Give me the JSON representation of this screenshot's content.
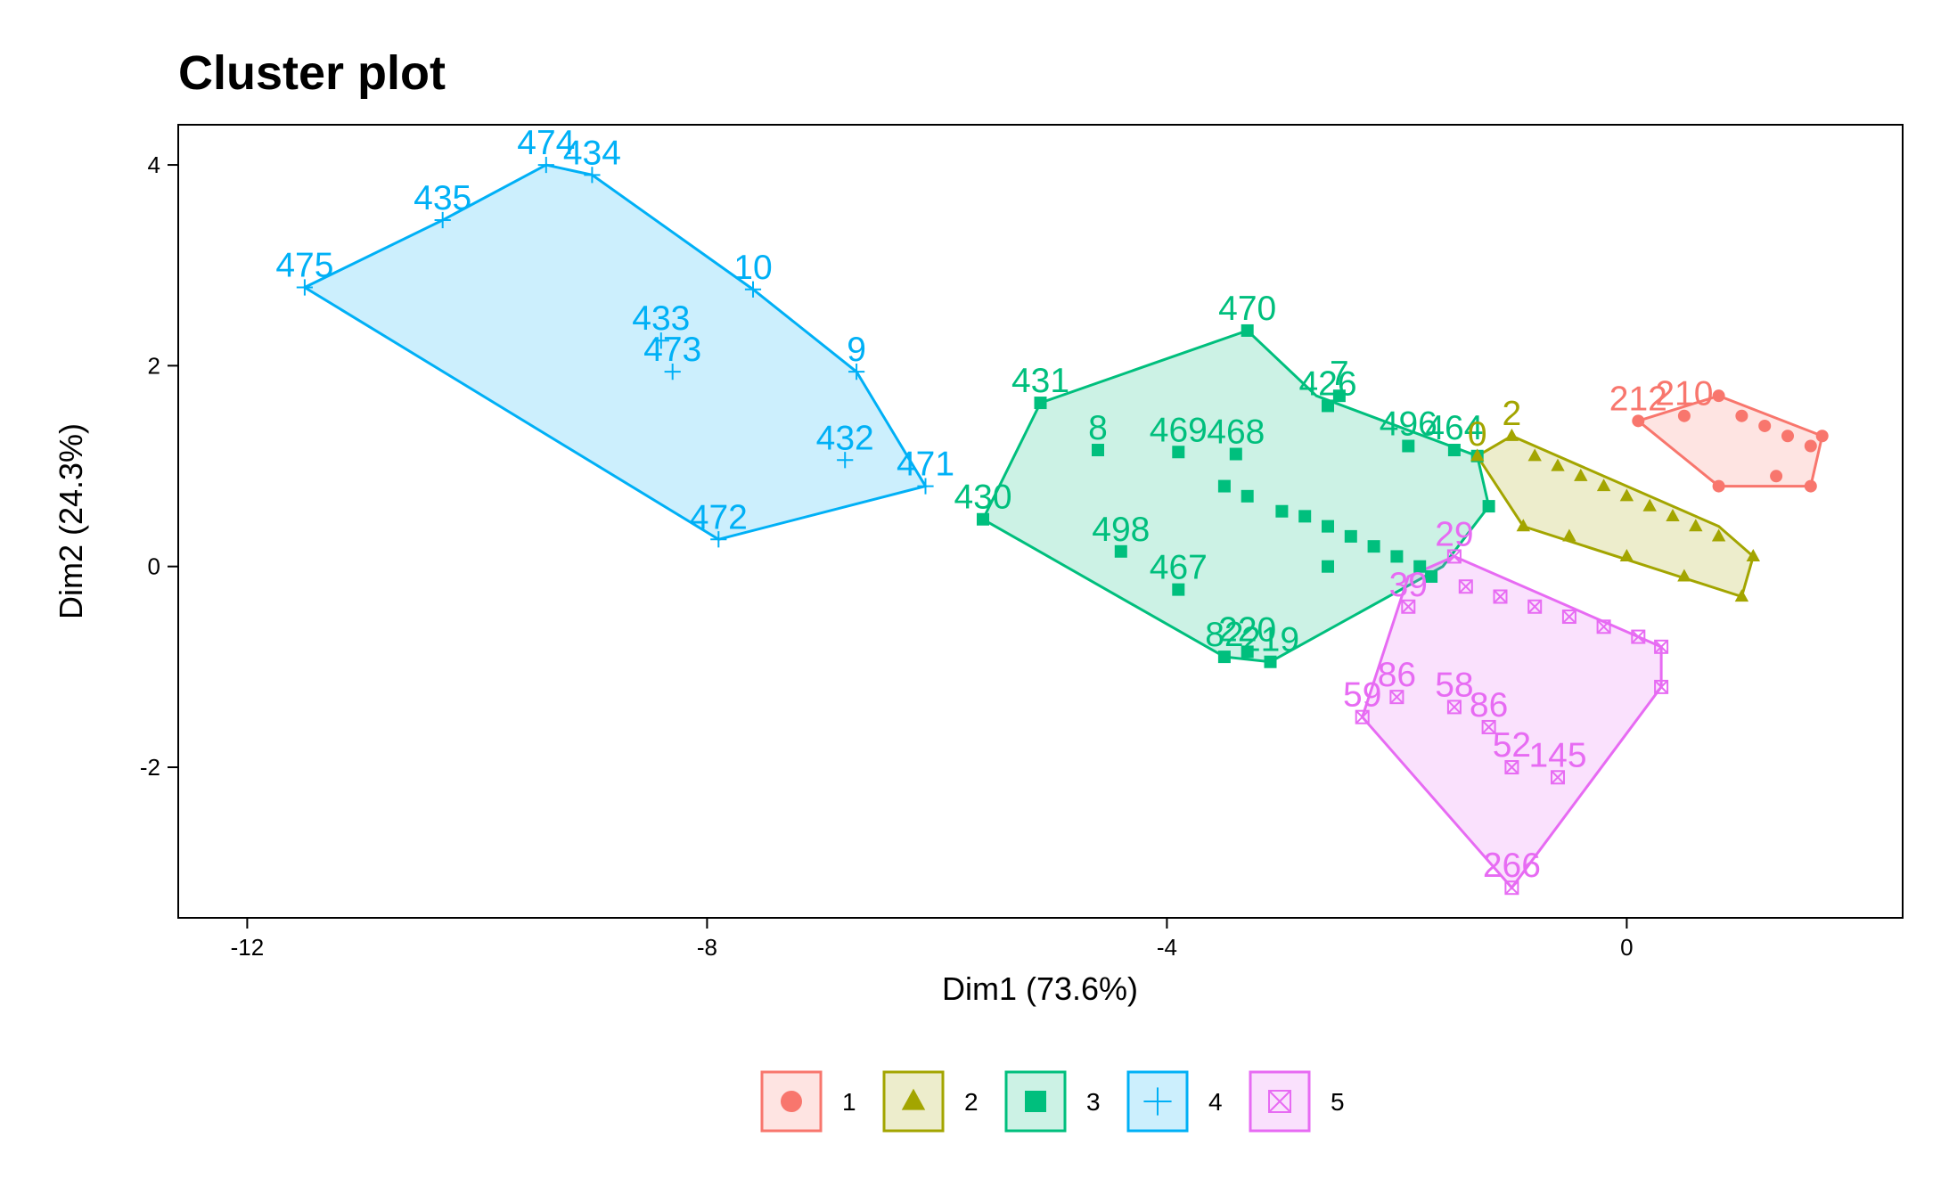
{
  "chart_data": {
    "type": "scatter",
    "title": "Cluster plot",
    "xlabel": "Dim1 (73.6%)",
    "ylabel": "Dim2 (24.3%)",
    "xlim": [
      -12.6,
      2.4
    ],
    "ylim": [
      -3.5,
      4.4
    ],
    "x_ticks": [
      -12,
      -8,
      -4,
      0
    ],
    "y_ticks": [
      -2,
      0,
      2,
      4
    ],
    "grid": false,
    "legend_position": "bottom",
    "legend": [
      "1",
      "2",
      "3",
      "4",
      "5"
    ],
    "colors": {
      "1": "#F8766D",
      "2": "#A3A500",
      "3": "#00BF7D",
      "4": "#00B0F6",
      "5": "#E76BF3"
    },
    "clusters": [
      {
        "name": "4",
        "marker": "plus",
        "hull": [
          [
            -11.5,
            2.78
          ],
          [
            -10.3,
            3.45
          ],
          [
            -9.4,
            4.0
          ],
          [
            -9.0,
            3.9
          ],
          [
            -7.6,
            2.76
          ],
          [
            -6.7,
            1.94
          ],
          [
            -6.1,
            0.8
          ],
          [
            -7.9,
            0.27
          ]
        ],
        "points": [
          {
            "x": -11.5,
            "y": 2.78,
            "label": "475"
          },
          {
            "x": -10.3,
            "y": 3.45,
            "label": "435"
          },
          {
            "x": -9.4,
            "y": 4.0,
            "label": "474"
          },
          {
            "x": -9.0,
            "y": 3.9,
            "label": "434"
          },
          {
            "x": -7.6,
            "y": 2.76,
            "label": "10"
          },
          {
            "x": -8.4,
            "y": 2.25,
            "label": "433"
          },
          {
            "x": -8.3,
            "y": 1.94,
            "label": "473"
          },
          {
            "x": -6.7,
            "y": 1.94,
            "label": "9"
          },
          {
            "x": -6.8,
            "y": 1.06,
            "label": "432"
          },
          {
            "x": -6.1,
            "y": 0.8,
            "label": "471"
          },
          {
            "x": -7.9,
            "y": 0.27,
            "label": "472"
          }
        ]
      },
      {
        "name": "3",
        "marker": "square",
        "hull": [
          [
            -5.6,
            0.47
          ],
          [
            -5.1,
            1.63
          ],
          [
            -3.3,
            2.35
          ],
          [
            -2.7,
            1.7
          ],
          [
            -1.3,
            1.1
          ],
          [
            -1.2,
            0.6
          ],
          [
            -1.6,
            0.0
          ],
          [
            -3.1,
            -0.95
          ],
          [
            -3.5,
            -0.9
          ]
        ],
        "points": [
          {
            "x": -5.6,
            "y": 0.47,
            "label": "430"
          },
          {
            "x": -5.1,
            "y": 1.63,
            "label": "431"
          },
          {
            "x": -4.6,
            "y": 1.16,
            "label": "8"
          },
          {
            "x": -3.3,
            "y": 2.35,
            "label": "470"
          },
          {
            "x": -3.9,
            "y": 1.14,
            "label": "469"
          },
          {
            "x": -3.4,
            "y": 1.12,
            "label": "468"
          },
          {
            "x": -4.4,
            "y": 0.15,
            "label": "498"
          },
          {
            "x": -3.9,
            "y": -0.23,
            "label": "467"
          },
          {
            "x": -3.5,
            "y": -0.9,
            "label": "82"
          },
          {
            "x": -3.1,
            "y": -0.95,
            "label": "219"
          },
          {
            "x": -3.3,
            "y": -0.85,
            "label": "220"
          },
          {
            "x": -2.6,
            "y": 1.6,
            "label": "426"
          },
          {
            "x": -2.5,
            "y": 1.7,
            "label": "7"
          },
          {
            "x": -1.9,
            "y": 1.2,
            "label": "496"
          },
          {
            "x": -1.5,
            "y": 1.16,
            "label": "464"
          },
          {
            "x": -3.5,
            "y": 0.8
          },
          {
            "x": -3.3,
            "y": 0.7
          },
          {
            "x": -3.0,
            "y": 0.55
          },
          {
            "x": -2.8,
            "y": 0.5
          },
          {
            "x": -2.6,
            "y": 0.4
          },
          {
            "x": -2.4,
            "y": 0.3
          },
          {
            "x": -2.2,
            "y": 0.2
          },
          {
            "x": -2.0,
            "y": 0.1
          },
          {
            "x": -1.8,
            "y": 0.0
          },
          {
            "x": -1.7,
            "y": -0.1
          },
          {
            "x": -2.6,
            "y": 0.0
          },
          {
            "x": -1.3,
            "y": 1.1
          },
          {
            "x": -1.2,
            "y": 0.6
          }
        ]
      },
      {
        "name": "2",
        "marker": "triangle",
        "hull": [
          [
            -1.3,
            1.1
          ],
          [
            -1.0,
            1.3
          ],
          [
            0.8,
            0.4
          ],
          [
            1.1,
            0.1
          ],
          [
            1.0,
            -0.3
          ],
          [
            -0.9,
            0.4
          ]
        ],
        "points": [
          {
            "x": -1.3,
            "y": 1.1,
            "label": "0"
          },
          {
            "x": -1.0,
            "y": 1.3,
            "label": "2"
          },
          {
            "x": -0.8,
            "y": 1.1
          },
          {
            "x": -0.6,
            "y": 1.0
          },
          {
            "x": -0.4,
            "y": 0.9
          },
          {
            "x": -0.2,
            "y": 0.8
          },
          {
            "x": 0.0,
            "y": 0.7
          },
          {
            "x": 0.2,
            "y": 0.6
          },
          {
            "x": 0.4,
            "y": 0.5
          },
          {
            "x": 0.6,
            "y": 0.4
          },
          {
            "x": 0.8,
            "y": 0.3
          },
          {
            "x": 1.1,
            "y": 0.1
          },
          {
            "x": 1.0,
            "y": -0.3
          },
          {
            "x": 0.5,
            "y": -0.1
          },
          {
            "x": 0.0,
            "y": 0.1
          },
          {
            "x": -0.5,
            "y": 0.3
          },
          {
            "x": -0.9,
            "y": 0.4
          }
        ]
      },
      {
        "name": "1",
        "marker": "circle",
        "hull": [
          [
            0.1,
            1.45
          ],
          [
            0.8,
            1.7
          ],
          [
            1.7,
            1.3
          ],
          [
            1.6,
            0.8
          ],
          [
            0.8,
            0.8
          ]
        ],
        "points": [
          {
            "x": 0.1,
            "y": 1.45,
            "label": "212"
          },
          {
            "x": 0.5,
            "y": 1.5,
            "label": "210"
          },
          {
            "x": 0.8,
            "y": 1.7
          },
          {
            "x": 1.0,
            "y": 1.5
          },
          {
            "x": 1.2,
            "y": 1.4
          },
          {
            "x": 1.4,
            "y": 1.3
          },
          {
            "x": 1.6,
            "y": 1.2
          },
          {
            "x": 1.7,
            "y": 1.3
          },
          {
            "x": 1.6,
            "y": 0.8
          },
          {
            "x": 1.3,
            "y": 0.9
          },
          {
            "x": 0.8,
            "y": 0.8
          }
        ]
      },
      {
        "name": "5",
        "marker": "boxx",
        "hull": [
          [
            -1.9,
            -0.1
          ],
          [
            -1.5,
            0.1
          ],
          [
            0.3,
            -0.8
          ],
          [
            0.3,
            -1.2
          ],
          [
            -1.0,
            -3.2
          ],
          [
            -2.3,
            -1.5
          ]
        ],
        "points": [
          {
            "x": -1.5,
            "y": 0.1,
            "label": "29"
          },
          {
            "x": -1.9,
            "y": -0.4,
            "label": "39"
          },
          {
            "x": -1.4,
            "y": -0.2
          },
          {
            "x": -1.1,
            "y": -0.3
          },
          {
            "x": -0.8,
            "y": -0.4
          },
          {
            "x": -0.5,
            "y": -0.5
          },
          {
            "x": -0.2,
            "y": -0.6
          },
          {
            "x": 0.1,
            "y": -0.7
          },
          {
            "x": 0.3,
            "y": -0.8
          },
          {
            "x": 0.3,
            "y": -1.2
          },
          {
            "x": -2.3,
            "y": -1.5,
            "label": "59"
          },
          {
            "x": -2.0,
            "y": -1.3,
            "label": "86"
          },
          {
            "x": -1.5,
            "y": -1.4,
            "label": "58"
          },
          {
            "x": -1.2,
            "y": -1.6,
            "label": "86"
          },
          {
            "x": -1.0,
            "y": -2.0,
            "label": "52"
          },
          {
            "x": -0.6,
            "y": -2.1,
            "label": "145"
          },
          {
            "x": -1.0,
            "y": -3.2,
            "label": "266"
          }
        ]
      }
    ]
  }
}
